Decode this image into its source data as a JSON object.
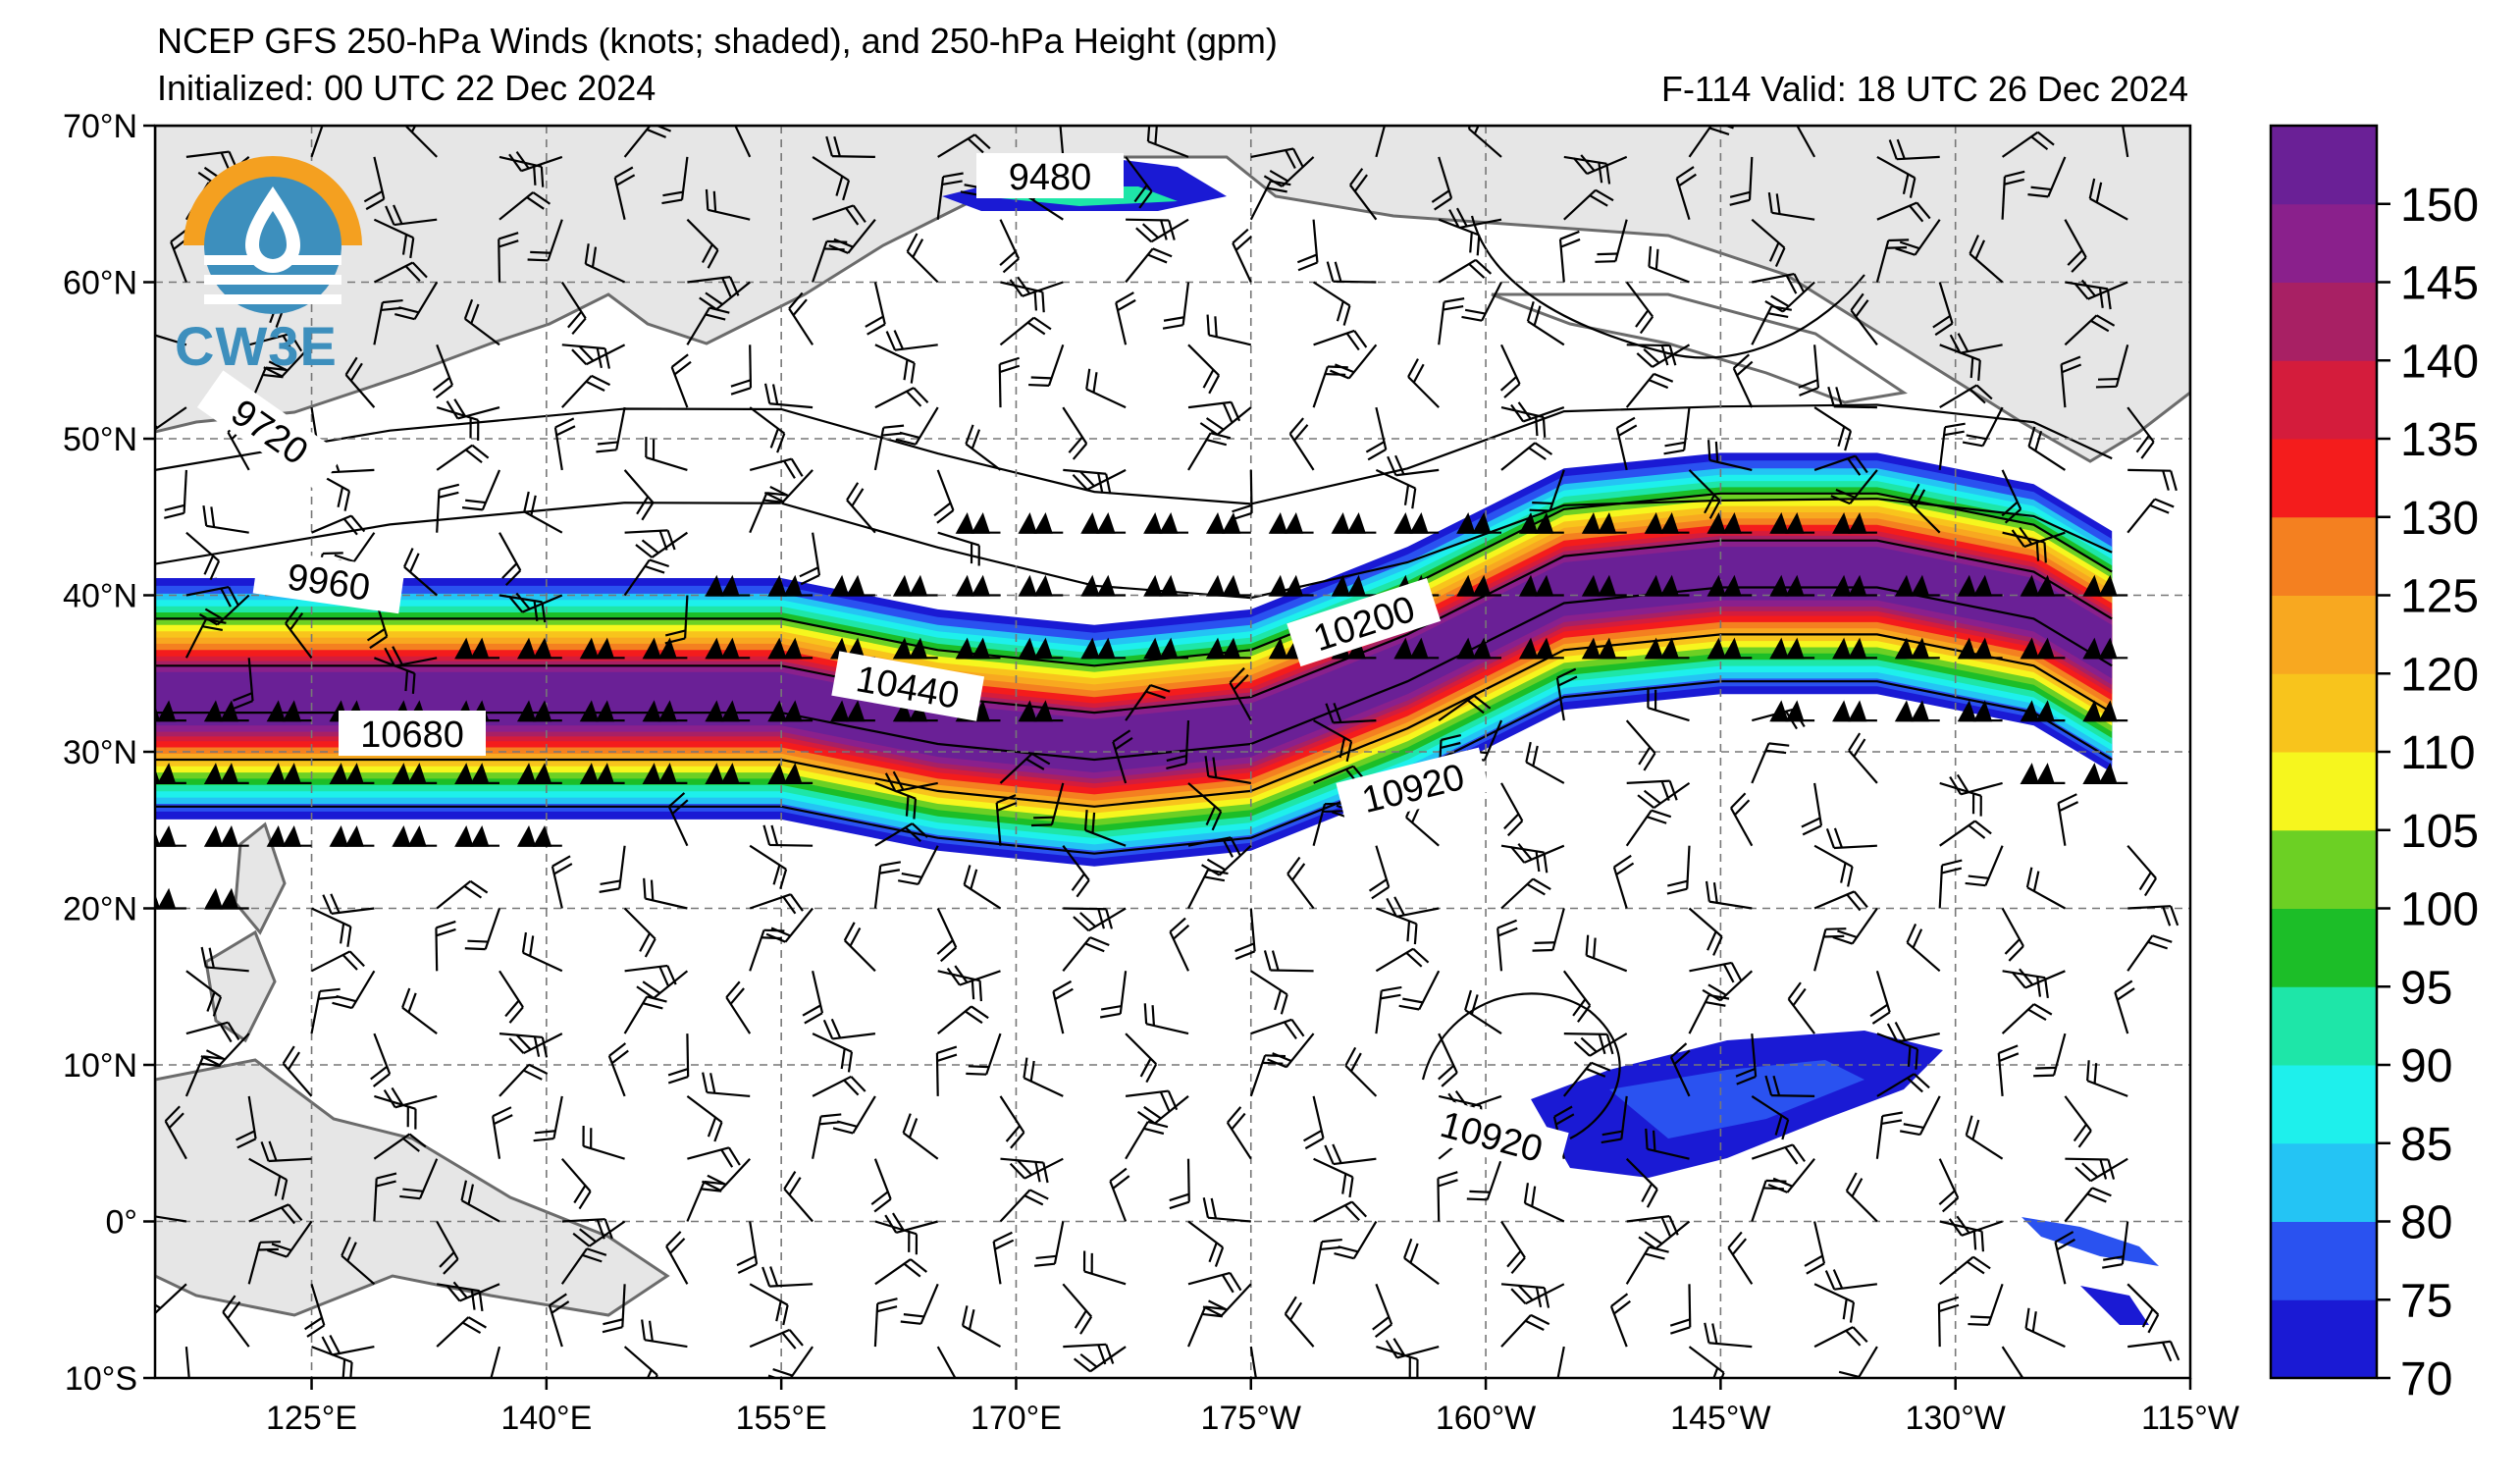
{
  "title": {
    "line1": "NCEP GFS 250-hPa Winds (knots; shaded), and 250-hPa Height (gpm)",
    "line2": "Initialized: 00 UTC 22 Dec 2024",
    "valid": "F-114  Valid: 18 UTC 26 Dec 2024"
  },
  "logo": {
    "text": "CW3E",
    "icon": "cw3e-water-drop-logo-icon"
  },
  "axes": {
    "lat_ticks": [
      "70°N",
      "60°N",
      "50°N",
      "40°N",
      "30°N",
      "20°N",
      "10°N",
      "0°",
      "10°S"
    ],
    "lat_values": [
      70,
      60,
      50,
      40,
      30,
      20,
      10,
      0,
      -10
    ],
    "lon_ticks": [
      "125°E",
      "140°E",
      "155°E",
      "170°E",
      "175°W",
      "160°W",
      "145°W",
      "130°W",
      "115°W"
    ],
    "lon_values": [
      125,
      140,
      155,
      170,
      185,
      200,
      215,
      230,
      245
    ],
    "lon_range": [
      115,
      245
    ],
    "lat_range": [
      -10,
      70
    ],
    "grid": true
  },
  "colorbar": {
    "ticks": [
      "70",
      "75",
      "80",
      "85",
      "90",
      "95",
      "100",
      "105",
      "110",
      "120",
      "125",
      "130",
      "135",
      "140",
      "145",
      "150"
    ],
    "bins": [
      {
        "color": "#1a1ad4"
      },
      {
        "color": "#2a52f0"
      },
      {
        "color": "#24c4f4"
      },
      {
        "color": "#1ef0ec"
      },
      {
        "color": "#1ee6a8"
      },
      {
        "color": "#1cbe28"
      },
      {
        "color": "#6cd024"
      },
      {
        "color": "#f6f61e"
      },
      {
        "color": "#f8c41c"
      },
      {
        "color": "#f8a820"
      },
      {
        "color": "#f48020"
      },
      {
        "color": "#f41c1c"
      },
      {
        "color": "#d41c3c"
      },
      {
        "color": "#a82064"
      },
      {
        "color": "#8a208c"
      },
      {
        "color": "#6a2096"
      }
    ]
  },
  "contour_labels": [
    {
      "text": "9480"
    },
    {
      "text": "9720"
    },
    {
      "text": "9960"
    },
    {
      "text": "10200"
    },
    {
      "text": "10440"
    },
    {
      "text": "10680"
    },
    {
      "text": "10920"
    },
    {
      "text": "10920"
    }
  ],
  "chart_data": {
    "type": "heatmap",
    "title": "NCEP GFS 250-hPa Winds (knots; shaded), and 250-hPa Height (gpm)",
    "subtitle": "Initialized: 00 UTC 22 Dec 2024",
    "xlabel": "",
    "ylabel": "",
    "xlim": [
      115,
      245
    ],
    "ylim": [
      -10,
      70
    ],
    "colorbar_levels": [
      70,
      75,
      80,
      85,
      90,
      95,
      100,
      105,
      110,
      120,
      125,
      130,
      135,
      140,
      145,
      150
    ],
    "height_contours_gpm": [
      9480,
      9720,
      9960,
      10200,
      10440,
      10680,
      10920
    ],
    "jet_axis": [
      {
        "lon": 115,
        "lat": 33
      },
      {
        "lon": 130,
        "lat": 33
      },
      {
        "lon": 145,
        "lat": 33
      },
      {
        "lon": 155,
        "lat": 33
      },
      {
        "lon": 165,
        "lat": 31
      },
      {
        "lon": 175,
        "lat": 30
      },
      {
        "lon": 185,
        "lat": 31
      },
      {
        "lon": 195,
        "lat": 35
      },
      {
        "lon": 205,
        "lat": 40
      },
      {
        "lon": 215,
        "lat": 41
      },
      {
        "lon": 225,
        "lat": 41
      },
      {
        "lon": 235,
        "lat": 39
      },
      {
        "lon": 240,
        "lat": 36
      }
    ],
    "jet_max_kt": 150
  }
}
